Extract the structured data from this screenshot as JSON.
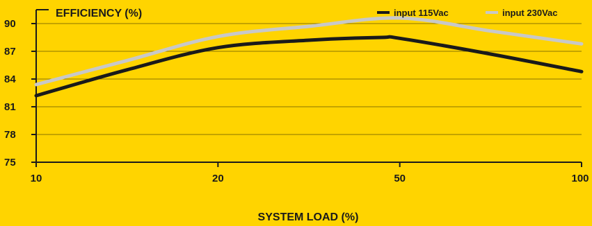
{
  "chart_data": {
    "type": "line",
    "title": "EFFICIENCY (%)",
    "xlabel": "SYSTEM LOAD (%)",
    "ylabel": "",
    "x": [
      10,
      20,
      50,
      100
    ],
    "categories": [
      "10",
      "20",
      "50",
      "100"
    ],
    "ylim": [
      75,
      91.5
    ],
    "yticks": [
      75,
      78,
      81,
      84,
      87,
      90
    ],
    "grid": true,
    "legend": "top-right",
    "series": [
      {
        "name": "input 115Vac",
        "color": "#1a1a1a",
        "points": [
          [
            0,
            82.2
          ],
          [
            0.5,
            85.0
          ],
          [
            1.0,
            87.4
          ],
          [
            1.5,
            88.2
          ],
          [
            1.9,
            88.5
          ],
          [
            2.0,
            88.4
          ],
          [
            2.5,
            86.7
          ],
          [
            3.0,
            84.8
          ]
        ]
      },
      {
        "name": "input 230Vac",
        "color": "#c8c8c8",
        "points": [
          [
            0,
            83.4
          ],
          [
            0.5,
            86.0
          ],
          [
            1.0,
            88.6
          ],
          [
            1.5,
            89.7
          ],
          [
            2.0,
            90.6
          ],
          [
            2.5,
            89.2
          ],
          [
            3.0,
            87.8
          ]
        ]
      }
    ]
  },
  "colors": {
    "background": "#FFD400",
    "axis": "#1a1a1a"
  }
}
